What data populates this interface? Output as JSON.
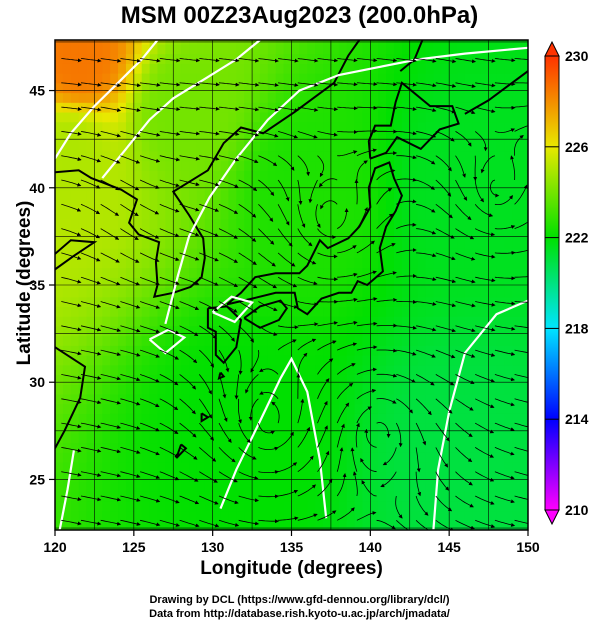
{
  "page": {
    "title": "MSM 00Z23Aug2023 (200.0hPa)",
    "credit_line1": "Drawing by DCL (https://www.gfd-dennou.org/library/dcl/)",
    "credit_line2": "Data from http://database.rish.kyoto-u.ac.jp/arch/jmadata/"
  },
  "chart_data": {
    "type": "heatmap",
    "title": "MSM 00Z23Aug2023 (200.0hPa)",
    "xlabel": "Longitude (degrees)",
    "ylabel": "Latitude  (degrees)",
    "xlim": [
      120,
      150
    ],
    "ylim": [
      22.4,
      47.6
    ],
    "xticks": [
      120,
      125,
      130,
      135,
      140,
      145,
      150
    ],
    "yticks": [
      25,
      30,
      35,
      40,
      45
    ],
    "grid": true,
    "overlay": "streamlines of wind field with coastlines",
    "colorbar": {
      "min": 210,
      "max": 230,
      "ticks": [
        210,
        214,
        218,
        222,
        226,
        230
      ],
      "colors": [
        "#ff00ff",
        "#0000ff",
        "#00e5ff",
        "#00e000",
        "#e8e800",
        "#ff3300"
      ]
    },
    "field_regions": [
      {
        "lon": 121.5,
        "lat": 46.5,
        "value": 228.5
      },
      {
        "lon": 121.0,
        "lat": 42.0,
        "value": 225.0
      },
      {
        "lon": 128.0,
        "lat": 44.0,
        "value": 224.0
      },
      {
        "lon": 136.0,
        "lat": 40.0,
        "value": 222.5
      },
      {
        "lon": 146.0,
        "lat": 40.0,
        "value": 221.5
      },
      {
        "lon": 132.0,
        "lat": 28.0,
        "value": 222.0
      },
      {
        "lon": 146.0,
        "lat": 27.0,
        "value": 221.0
      }
    ],
    "contours": [
      {
        "value": 224
      },
      {
        "value": 223
      },
      {
        "value": 222
      },
      {
        "value": 221
      }
    ],
    "vortices": [
      {
        "lon": 137.5,
        "lat": 38.5,
        "sense": "cyclonic"
      },
      {
        "lon": 133.5,
        "lat": 28.0,
        "sense": "cyclonic"
      },
      {
        "lon": 140.5,
        "lat": 27.5,
        "sense": "anticyclonic"
      },
      {
        "lon": 148.0,
        "lat": 40.0,
        "sense": "cyclonic"
      }
    ]
  }
}
